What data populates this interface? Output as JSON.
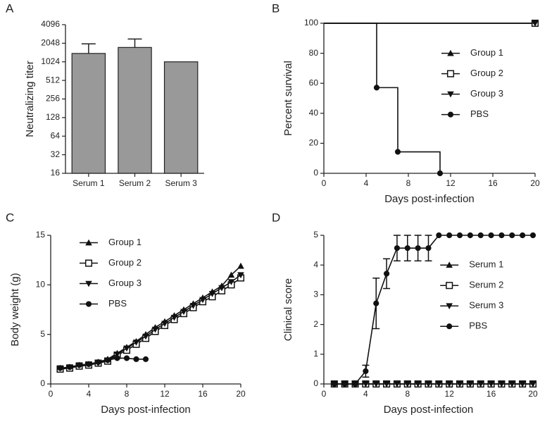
{
  "chart_data": [
    {
      "type": "bar",
      "panel": "A",
      "ylabel": "Neutralizing titer",
      "categories": [
        "Serum 1",
        "Serum 2",
        "Serum 3"
      ],
      "values": [
        1400,
        1750,
        1024
      ],
      "errors": [
        600,
        650,
        null
      ],
      "color": "#999999",
      "yscale": "log",
      "ylim": [
        16,
        4096
      ],
      "yticks": [
        16,
        32,
        64,
        128,
        256,
        512,
        1024,
        2048,
        4096
      ]
    },
    {
      "type": "step",
      "panel": "B",
      "ylabel": "Percent survival",
      "xlabel": "Days post-infection",
      "xlim": [
        0,
        20
      ],
      "xticks": [
        0,
        4,
        8,
        12,
        16,
        20
      ],
      "ylim": [
        0,
        100
      ],
      "yticks": [
        0,
        20,
        40,
        60,
        80,
        100
      ],
      "legend": "center right",
      "series": [
        {
          "name": "Group 1",
          "color": "#111111",
          "marker": "triangle-up",
          "x": [
            0,
            20
          ],
          "values": [
            100,
            100
          ]
        },
        {
          "name": "Group 2",
          "color": "#111111",
          "marker": "square-open",
          "x": [
            0,
            20
          ],
          "values": [
            100,
            100
          ]
        },
        {
          "name": "Group 3",
          "color": "#111111",
          "marker": "triangle-down",
          "x": [
            0,
            20
          ],
          "values": [
            100,
            100
          ]
        },
        {
          "name": "PBS",
          "color": "#111111",
          "marker": "circle",
          "x": [
            0,
            5,
            7,
            11
          ],
          "values": [
            100,
            57.1,
            14.3,
            0
          ]
        }
      ]
    },
    {
      "type": "line",
      "panel": "C",
      "ylabel": "Body weight (g)",
      "xlabel": "Days post-infection",
      "xlim": [
        0,
        20
      ],
      "xticks": [
        0,
        4,
        8,
        12,
        16,
        20
      ],
      "ylim": [
        0,
        15
      ],
      "yticks": [
        0,
        5,
        10,
        15
      ],
      "legend": "upper left",
      "series": [
        {
          "name": "Group 1",
          "color": "#111111",
          "marker": "triangle-up",
          "x": [
            1,
            2,
            3,
            4,
            5,
            6,
            7,
            8,
            9,
            10,
            11,
            12,
            13,
            14,
            15,
            16,
            17,
            18,
            19,
            20
          ],
          "values": [
            1.6,
            1.7,
            1.9,
            2.0,
            2.2,
            2.5,
            3.1,
            3.7,
            4.3,
            5.0,
            5.7,
            6.3,
            6.9,
            7.5,
            8.1,
            8.7,
            9.3,
            9.9,
            11.0,
            11.9
          ]
        },
        {
          "name": "Group 2",
          "color": "#111111",
          "marker": "square-open",
          "x": [
            1,
            2,
            3,
            4,
            5,
            6,
            7,
            8,
            9,
            10,
            11,
            12,
            13,
            14,
            15,
            16,
            17,
            18,
            19,
            20
          ],
          "values": [
            1.5,
            1.6,
            1.8,
            1.9,
            2.1,
            2.3,
            2.9,
            3.4,
            4.0,
            4.6,
            5.3,
            5.9,
            6.5,
            7.1,
            7.7,
            8.3,
            8.8,
            9.4,
            10.0,
            10.7
          ]
        },
        {
          "name": "Group 3",
          "color": "#111111",
          "marker": "triangle-down",
          "x": [
            1,
            2,
            3,
            4,
            5,
            6,
            7,
            8,
            9,
            10,
            11,
            12,
            13,
            14,
            15,
            16,
            17,
            18,
            19,
            20
          ],
          "values": [
            1.6,
            1.7,
            1.9,
            2.0,
            2.1,
            2.4,
            3.0,
            3.6,
            4.2,
            4.8,
            5.5,
            6.1,
            6.7,
            7.3,
            7.9,
            8.5,
            9.1,
            9.7,
            10.3,
            11.0
          ]
        },
        {
          "name": "PBS",
          "color": "#111111",
          "marker": "circle",
          "x": [
            1,
            2,
            3,
            4,
            5,
            6,
            7,
            8,
            9,
            10
          ],
          "values": [
            1.6,
            1.7,
            1.9,
            2.0,
            2.2,
            2.4,
            2.6,
            2.6,
            2.5,
            2.5
          ]
        }
      ]
    },
    {
      "type": "line",
      "panel": "D",
      "ylabel": "Clinical score",
      "xlabel": "Days post-infection",
      "xlim": [
        0,
        20
      ],
      "xticks": [
        0,
        4,
        8,
        12,
        16,
        20
      ],
      "ylim": [
        0,
        5
      ],
      "yticks": [
        0,
        1,
        2,
        3,
        4,
        5
      ],
      "legend": "center right",
      "series": [
        {
          "name": "Serum 1",
          "color": "#111111",
          "marker": "triangle-up",
          "x": [
            1,
            2,
            3,
            4,
            5,
            6,
            7,
            8,
            9,
            10,
            11,
            12,
            13,
            14,
            15,
            16,
            17,
            18,
            19,
            20
          ],
          "values": [
            0,
            0,
            0,
            0,
            0,
            0,
            0,
            0,
            0,
            0,
            0,
            0,
            0,
            0,
            0,
            0,
            0,
            0,
            0,
            0
          ]
        },
        {
          "name": "Serum 2",
          "color": "#111111",
          "marker": "square-open",
          "x": [
            1,
            2,
            3,
            4,
            5,
            6,
            7,
            8,
            9,
            10,
            11,
            12,
            13,
            14,
            15,
            16,
            17,
            18,
            19,
            20
          ],
          "values": [
            0,
            0,
            0,
            0,
            0,
            0,
            0,
            0,
            0,
            0,
            0,
            0,
            0,
            0,
            0,
            0,
            0,
            0,
            0,
            0
          ]
        },
        {
          "name": "Serum 3",
          "color": "#111111",
          "marker": "triangle-down",
          "x": [
            1,
            2,
            3,
            4,
            5,
            6,
            7,
            8,
            9,
            10,
            11,
            12,
            13,
            14,
            15,
            16,
            17,
            18,
            19,
            20
          ],
          "values": [
            0,
            0,
            0,
            0,
            0,
            0,
            0,
            0,
            0,
            0,
            0,
            0,
            0,
            0,
            0,
            0,
            0,
            0,
            0,
            0
          ]
        },
        {
          "name": "PBS",
          "color": "#111111",
          "marker": "circle",
          "x": [
            1,
            2,
            3,
            4,
            5,
            6,
            7,
            8,
            9,
            10,
            11,
            12,
            13,
            14,
            15,
            16,
            17,
            18,
            19,
            20
          ],
          "values": [
            0,
            0,
            0,
            0.43,
            2.71,
            3.71,
            4.57,
            4.57,
            4.57,
            4.57,
            5,
            5,
            5,
            5,
            5,
            5,
            5,
            5,
            5,
            5
          ],
          "errors": [
            null,
            null,
            null,
            0.2,
            0.85,
            0.5,
            0.43,
            0.43,
            0.43,
            0.43,
            null,
            null,
            null,
            null,
            null,
            null,
            null,
            null,
            null,
            null
          ]
        }
      ]
    }
  ]
}
